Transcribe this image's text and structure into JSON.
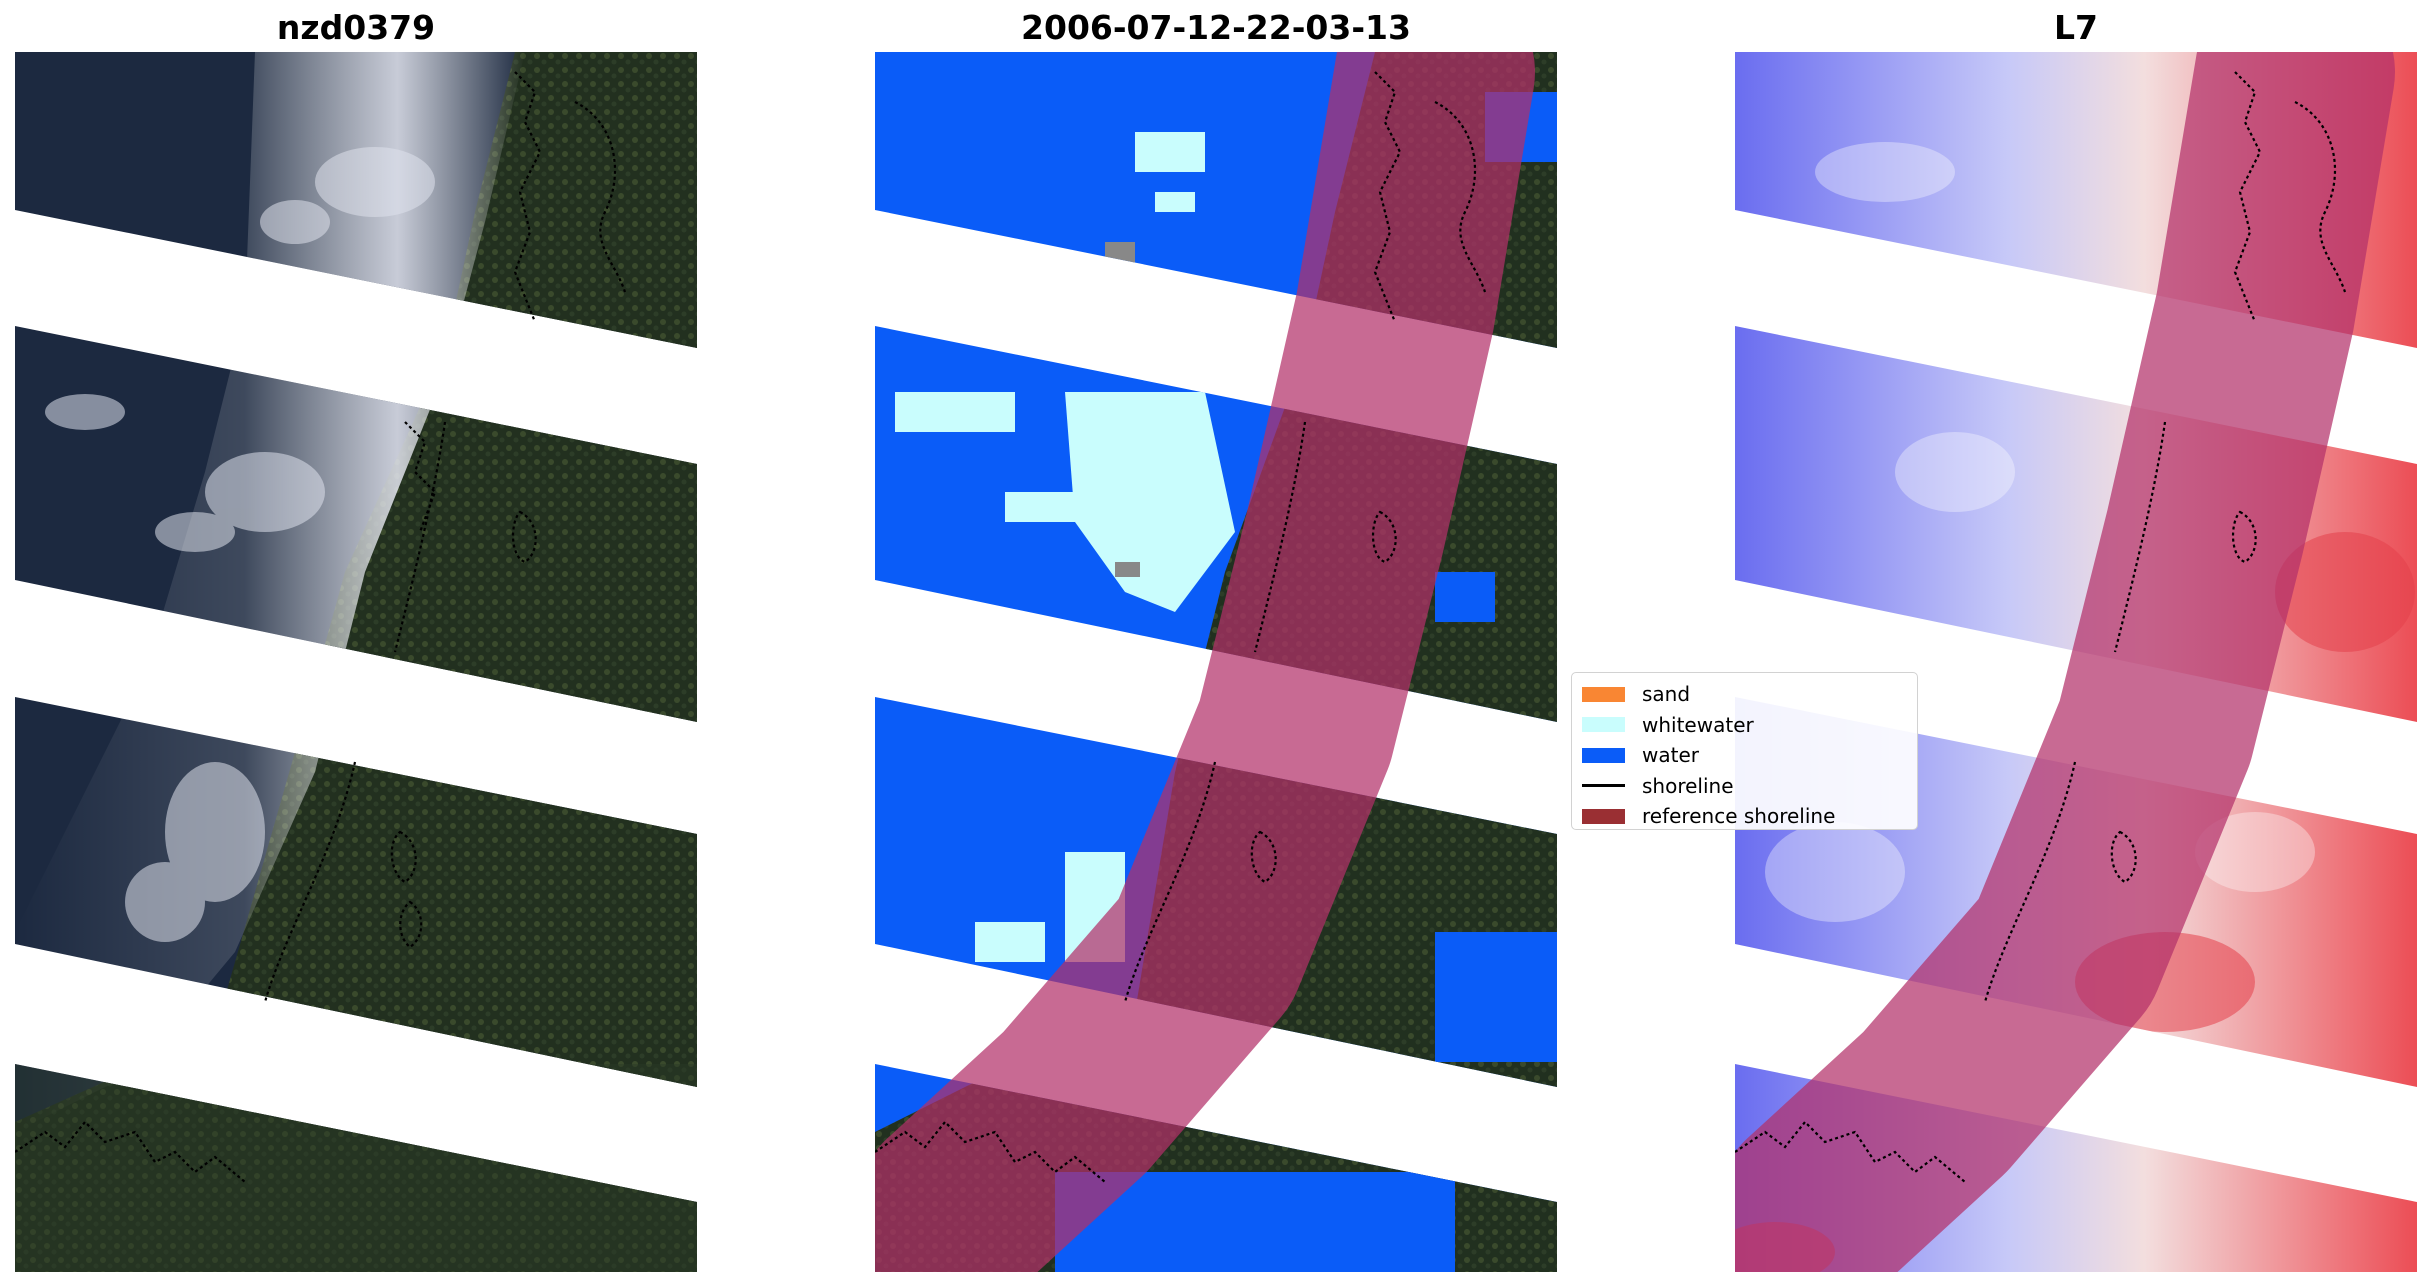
{
  "titles": {
    "left": "nzd0379",
    "middle": "2006-07-12-22-03-13",
    "right": "L7"
  },
  "legend": {
    "items": [
      {
        "label": "sand",
        "kind": "patch",
        "color": "#f98633"
      },
      {
        "label": "whitewater",
        "kind": "patch",
        "color": "#c9fdfd"
      },
      {
        "label": "water",
        "kind": "patch",
        "color": "#0a5cf8"
      },
      {
        "label": "shoreline",
        "kind": "line",
        "color": "#000000"
      },
      {
        "label": "reference shoreline",
        "kind": "patch",
        "color": "#9a2f33"
      }
    ]
  },
  "colors": {
    "forest": "#1f2d25",
    "forest_light": "#34452e",
    "ocean": "#1c2b3d",
    "cloud": "#c9ccd8",
    "water": "#0a5cf8",
    "whitewater": "#c9fdfd",
    "reference_overlay": "#b3306a",
    "index_blue": "#6b6ef0",
    "index_red": "#e4404a"
  }
}
